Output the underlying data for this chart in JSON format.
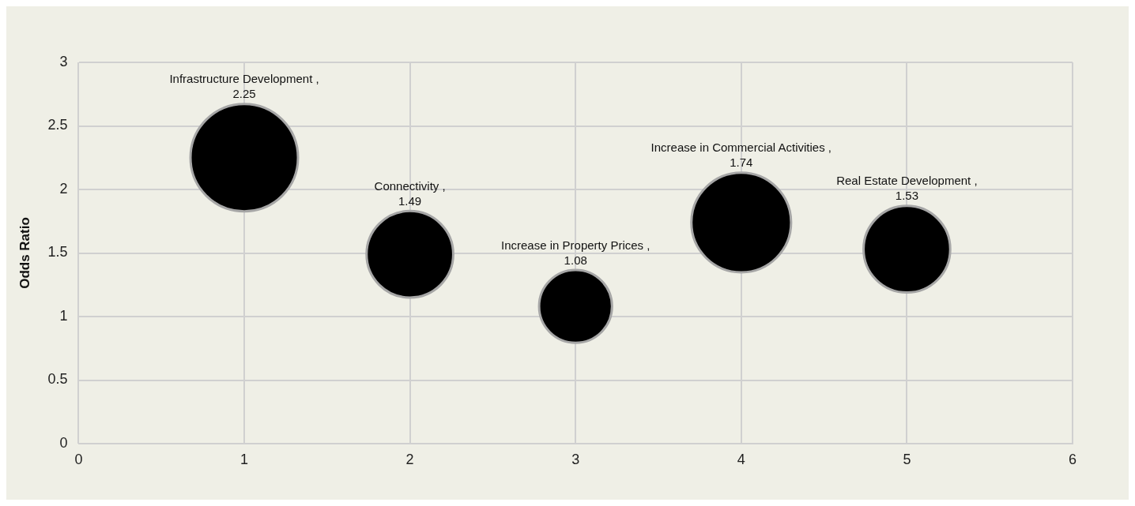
{
  "chart_data": {
    "type": "bubble",
    "ylabel": "Odds Ratio",
    "xlim": [
      0,
      6
    ],
    "xticks": [
      0,
      1,
      2,
      3,
      4,
      5,
      6
    ],
    "ylim": [
      0,
      3
    ],
    "yticks": [
      0,
      0.5,
      1,
      1.5,
      2,
      2.5,
      3
    ],
    "grid": true,
    "legend": false,
    "data_labels": true,
    "series": [
      {
        "name": "Infrastructure Development ,",
        "color": "#000000",
        "x": [
          1
        ],
        "values": [
          2.25
        ],
        "sizes": [
          1
        ]
      },
      {
        "name": "Connectivity ,",
        "color": "#000000",
        "x": [
          2
        ],
        "values": [
          1.49
        ],
        "sizes": [
          0.65
        ]
      },
      {
        "name": "Increase in Property Prices ,",
        "color": "#000000",
        "x": [
          3
        ],
        "values": [
          1.08
        ],
        "sizes": [
          0.46
        ]
      },
      {
        "name": "Increase in Commercial Activities ,",
        "color": "#000000",
        "x": [
          4
        ],
        "values": [
          1.74
        ],
        "sizes": [
          0.86
        ]
      },
      {
        "name": "Real Estate Development ,",
        "color": "#000000",
        "x": [
          5
        ],
        "values": [
          1.53
        ],
        "sizes": [
          0.65
        ]
      }
    ]
  }
}
